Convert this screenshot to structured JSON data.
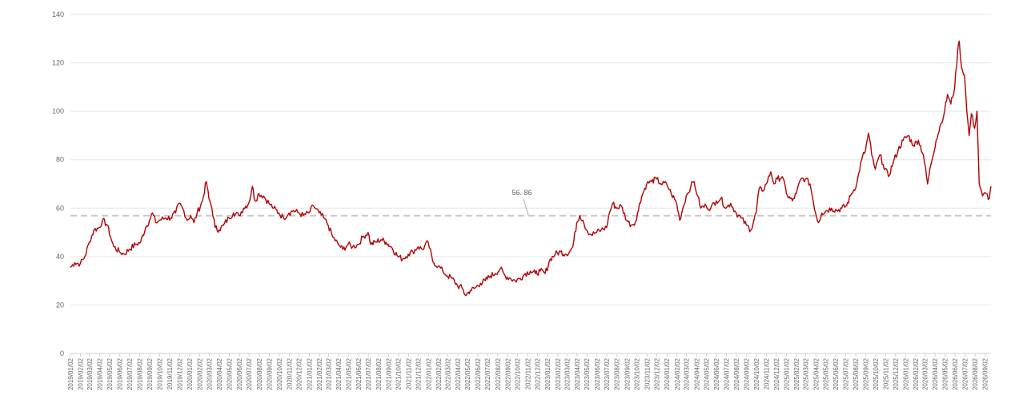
{
  "chart_data": {
    "type": "line",
    "title": "",
    "xlabel": "",
    "ylabel": "",
    "ylim": [
      0,
      140
    ],
    "y_ticks": [
      "0",
      "20",
      "40",
      "60",
      "80",
      "100",
      "120",
      "140"
    ],
    "grid": "horizontal",
    "colors": {
      "line": "#b30000",
      "average": "#c8c8c8",
      "grid": "#e6e6e6",
      "axis": "#d0d0d0",
      "text": "#666666"
    },
    "x_ticks": [
      "2019/01/02",
      "2019/02/02",
      "2019/03/02",
      "2019/04/02",
      "2019/05/02",
      "2019/06/02",
      "2019/07/02",
      "2019/08/02",
      "2019/09/02",
      "2019/10/02",
      "2019/11/02",
      "2019/12/02",
      "2020/01/02",
      "2020/02/02",
      "2020/03/02",
      "2020/04/02",
      "2020/05/02",
      "2020/06/02",
      "2020/07/02",
      "2020/08/02",
      "2020/09/02",
      "2020/10/02",
      "2020/11/02",
      "2020/12/02",
      "2021/01/02",
      "2021/02/02",
      "2021/03/02",
      "2021/04/02",
      "2021/05/02",
      "2021/06/02",
      "2021/07/02",
      "2021/08/02",
      "2021/09/02",
      "2021/10/02",
      "2021/11/02",
      "2021/12/02",
      "2022/01/02",
      "2022/02/02",
      "2022/03/02",
      "2022/04/02",
      "2022/05/02",
      "2022/06/02",
      "2022/07/02",
      "2022/08/02",
      "2022/09/02",
      "2022/10/02",
      "2022/11/02",
      "2022/12/02",
      "2023/01/02",
      "2023/02/02",
      "2023/03/02",
      "2023/04/02",
      "2023/05/02",
      "2023/06/02",
      "2023/07/02",
      "2023/08/02",
      "2023/09/02",
      "2023/10/02",
      "2023/11/02",
      "2023/12/02",
      "2024/01/02",
      "2024/02/02",
      "2024/03/02",
      "2024/04/02",
      "2024/05/02",
      "2024/06/02",
      "2024/07/02",
      "2024/08/02",
      "2024/09/02",
      "2024/10/02",
      "2024/11/02",
      "2024/12/02",
      "2025/01/02",
      "2025/02/02",
      "2025/03/02",
      "2025/04/02",
      "2025/05/02",
      "2025/06/02",
      "2025/07/02",
      "2025/08/02",
      "2025/09/02",
      "2025/10/02",
      "2025/11/02",
      "2025/12/02",
      "2026/01/02",
      "2026/02/02",
      "2026/03/02",
      "2026/04/02",
      "2026/05/02",
      "2026/06/02",
      "2026/07/02",
      "2026/08/02",
      "2026/09/02"
    ],
    "x_range": [
      "2019/01/02",
      "2026/09/20"
    ],
    "average": {
      "value": 56.86,
      "label": "56. 86"
    },
    "series": [
      {
        "values": [
          [
            "2019/01/02",
            35.5
          ],
          [
            "2019/01/15",
            37.5
          ],
          [
            "2019/02/01",
            37
          ],
          [
            "2019/02/15",
            40
          ],
          [
            "2019/03/01",
            46
          ],
          [
            "2019/03/15",
            51
          ],
          [
            "2019/04/01",
            52
          ],
          [
            "2019/04/10",
            55
          ],
          [
            "2019/04/25",
            53
          ],
          [
            "2019/05/05",
            48
          ],
          [
            "2019/05/15",
            44
          ],
          [
            "2019/06/01",
            42
          ],
          [
            "2019/06/15",
            41
          ],
          [
            "2019/07/01",
            43
          ],
          [
            "2019/07/20",
            45
          ],
          [
            "2019/08/05",
            46
          ],
          [
            "2019/08/20",
            52
          ],
          [
            "2019/09/01",
            55
          ],
          [
            "2019/09/10",
            58
          ],
          [
            "2019/09/20",
            54
          ],
          [
            "2019/10/01",
            55
          ],
          [
            "2019/10/20",
            56
          ],
          [
            "2019/11/05",
            56
          ],
          [
            "2019/11/20",
            58
          ],
          [
            "2019/12/01",
            62
          ],
          [
            "2019/12/15",
            59
          ],
          [
            "2019/12/25",
            55
          ],
          [
            "2020/01/05",
            57
          ],
          [
            "2020/01/15",
            54
          ],
          [
            "2020/01/25",
            58
          ],
          [
            "2020/02/10",
            63
          ],
          [
            "2020/02/22",
            71
          ],
          [
            "2020/03/01",
            64
          ],
          [
            "2020/03/10",
            60
          ],
          [
            "2020/03/20",
            52
          ],
          [
            "2020/04/01",
            51
          ],
          [
            "2020/04/15",
            53
          ],
          [
            "2020/05/01",
            56
          ],
          [
            "2020/05/15",
            58
          ],
          [
            "2020/06/01",
            57
          ],
          [
            "2020/06/15",
            60
          ],
          [
            "2020/07/01",
            62
          ],
          [
            "2020/07/12",
            69
          ],
          [
            "2020/07/20",
            63
          ],
          [
            "2020/08/01",
            66
          ],
          [
            "2020/08/15",
            65
          ],
          [
            "2020/09/01",
            62
          ],
          [
            "2020/09/15",
            60
          ],
          [
            "2020/10/01",
            58
          ],
          [
            "2020/10/15",
            56
          ],
          [
            "2020/11/01",
            58
          ],
          [
            "2020/11/15",
            59
          ],
          [
            "2020/12/01",
            58
          ],
          [
            "2020/12/15",
            57
          ],
          [
            "2021/01/01",
            58
          ],
          [
            "2021/01/15",
            61
          ],
          [
            "2021/02/01",
            58
          ],
          [
            "2021/02/15",
            56
          ],
          [
            "2021/03/01",
            53
          ],
          [
            "2021/03/15",
            48
          ],
          [
            "2021/04/01",
            45
          ],
          [
            "2021/04/15",
            43
          ],
          [
            "2021/05/01",
            45
          ],
          [
            "2021/05/15",
            44
          ],
          [
            "2021/06/01",
            45
          ],
          [
            "2021/06/15",
            48
          ],
          [
            "2021/07/01",
            50
          ],
          [
            "2021/07/10",
            45
          ],
          [
            "2021/07/25",
            46
          ],
          [
            "2021/08/10",
            47
          ],
          [
            "2021/08/25",
            46
          ],
          [
            "2021/09/10",
            44
          ],
          [
            "2021/10/01",
            40
          ],
          [
            "2021/10/15",
            39
          ],
          [
            "2021/11/01",
            41
          ],
          [
            "2021/11/15",
            42
          ],
          [
            "2021/12/01",
            44
          ],
          [
            "2021/12/15",
            43
          ],
          [
            "2022/01/01",
            46
          ],
          [
            "2022/01/15",
            38
          ],
          [
            "2022/02/01",
            36
          ],
          [
            "2022/02/15",
            34
          ],
          [
            "2022/03/01",
            32
          ],
          [
            "2022/03/15",
            31
          ],
          [
            "2022/04/01",
            28
          ],
          [
            "2022/04/15",
            27
          ],
          [
            "2022/04/25",
            24
          ],
          [
            "2022/05/10",
            26
          ],
          [
            "2022/05/25",
            27
          ],
          [
            "2022/06/10",
            29
          ],
          [
            "2022/06/25",
            30
          ],
          [
            "2022/07/10",
            32
          ],
          [
            "2022/07/25",
            33
          ],
          [
            "2022/08/10",
            35
          ],
          [
            "2022/08/25",
            32
          ],
          [
            "2022/09/10",
            31
          ],
          [
            "2022/09/25",
            30
          ],
          [
            "2022/10/10",
            31
          ],
          [
            "2022/10/25",
            33
          ],
          [
            "2022/11/10",
            34
          ],
          [
            "2022/11/25",
            33
          ],
          [
            "2022/12/10",
            34
          ],
          [
            "2022/12/25",
            33
          ],
          [
            "2023/01/10",
            39
          ],
          [
            "2023/01/25",
            41
          ],
          [
            "2023/02/10",
            42
          ],
          [
            "2023/02/25",
            41
          ],
          [
            "2023/03/10",
            42
          ],
          [
            "2023/03/20",
            44
          ],
          [
            "2023/04/01",
            54
          ],
          [
            "2023/04/10",
            57
          ],
          [
            "2023/04/20",
            55
          ],
          [
            "2023/05/01",
            51
          ],
          [
            "2023/05/15",
            49
          ],
          [
            "2023/06/01",
            50
          ],
          [
            "2023/06/15",
            51
          ],
          [
            "2023/07/01",
            52
          ],
          [
            "2023/07/10",
            58
          ],
          [
            "2023/07/20",
            62
          ],
          [
            "2023/08/01",
            60
          ],
          [
            "2023/08/15",
            61
          ],
          [
            "2023/09/01",
            55
          ],
          [
            "2023/09/15",
            53
          ],
          [
            "2023/10/01",
            55
          ],
          [
            "2023/10/10",
            62
          ],
          [
            "2023/10/20",
            66
          ],
          [
            "2023/11/01",
            70
          ],
          [
            "2023/11/15",
            71
          ],
          [
            "2023/12/01",
            72
          ],
          [
            "2023/12/15",
            70
          ],
          [
            "2024/01/01",
            70
          ],
          [
            "2024/01/15",
            66
          ],
          [
            "2024/02/01",
            62
          ],
          [
            "2024/02/10",
            55
          ],
          [
            "2024/02/20",
            60
          ],
          [
            "2024/03/01",
            65
          ],
          [
            "2024/03/15",
            69
          ],
          [
            "2024/03/25",
            71
          ],
          [
            "2024/04/05",
            65
          ],
          [
            "2024/04/15",
            60
          ],
          [
            "2024/05/01",
            61
          ],
          [
            "2024/05/15",
            60
          ],
          [
            "2024/06/01",
            63
          ],
          [
            "2024/06/15",
            64
          ],
          [
            "2024/07/01",
            60
          ],
          [
            "2024/07/15",
            62
          ],
          [
            "2024/08/01",
            58
          ],
          [
            "2024/08/15",
            56
          ],
          [
            "2024/09/01",
            53
          ],
          [
            "2024/09/15",
            51
          ],
          [
            "2024/10/01",
            58
          ],
          [
            "2024/10/10",
            68
          ],
          [
            "2024/10/20",
            67
          ],
          [
            "2024/11/01",
            70
          ],
          [
            "2024/11/15",
            75
          ],
          [
            "2024/11/25",
            70
          ],
          [
            "2024/12/05",
            72
          ],
          [
            "2024/12/20",
            73
          ],
          [
            "2025/01/05",
            65
          ],
          [
            "2025/01/20",
            63
          ],
          [
            "2025/02/01",
            66
          ],
          [
            "2025/02/15",
            72
          ],
          [
            "2025/03/01",
            72
          ],
          [
            "2025/03/15",
            70
          ],
          [
            "2025/04/01",
            58
          ],
          [
            "2025/04/10",
            54
          ],
          [
            "2025/04/20",
            58
          ],
          [
            "2025/05/05",
            59
          ],
          [
            "2025/05/20",
            60
          ],
          [
            "2025/06/05",
            59
          ],
          [
            "2025/06/20",
            60
          ],
          [
            "2025/07/05",
            61
          ],
          [
            "2025/07/20",
            66
          ],
          [
            "2025/08/05",
            70
          ],
          [
            "2025/08/20",
            80
          ],
          [
            "2025/09/01",
            84
          ],
          [
            "2025/09/10",
            91
          ],
          [
            "2025/09/20",
            82
          ],
          [
            "2025/10/01",
            76
          ],
          [
            "2025/10/15",
            82
          ],
          [
            "2025/10/25",
            78
          ],
          [
            "2025/11/10",
            73
          ],
          [
            "2025/11/25",
            79
          ],
          [
            "2025/12/10",
            84
          ],
          [
            "2025/12/25",
            88
          ],
          [
            "2026/01/10",
            90
          ],
          [
            "2026/01/25",
            86
          ],
          [
            "2026/02/10",
            88
          ],
          [
            "2026/02/25",
            82
          ],
          [
            "2026/03/10",
            70
          ],
          [
            "2026/03/20",
            78
          ],
          [
            "2026/04/05",
            88
          ],
          [
            "2026/04/20",
            95
          ],
          [
            "2026/05/01",
            100
          ],
          [
            "2026/05/10",
            107
          ],
          [
            "2026/05/20",
            103
          ],
          [
            "2026/06/01",
            110
          ],
          [
            "2026/06/10",
            125
          ],
          [
            "2026/06/15",
            129
          ],
          [
            "2026/06/22",
            118
          ],
          [
            "2026/07/01",
            115
          ],
          [
            "2026/07/08",
            100
          ],
          [
            "2026/07/15",
            90
          ],
          [
            "2026/07/22",
            99
          ],
          [
            "2026/08/01",
            93
          ],
          [
            "2026/08/08",
            100
          ],
          [
            "2026/08/15",
            70
          ],
          [
            "2026/08/25",
            65
          ],
          [
            "2026/09/05",
            66
          ],
          [
            "2026/09/15",
            64
          ],
          [
            "2026/09/20",
            69
          ]
        ]
      }
    ]
  }
}
